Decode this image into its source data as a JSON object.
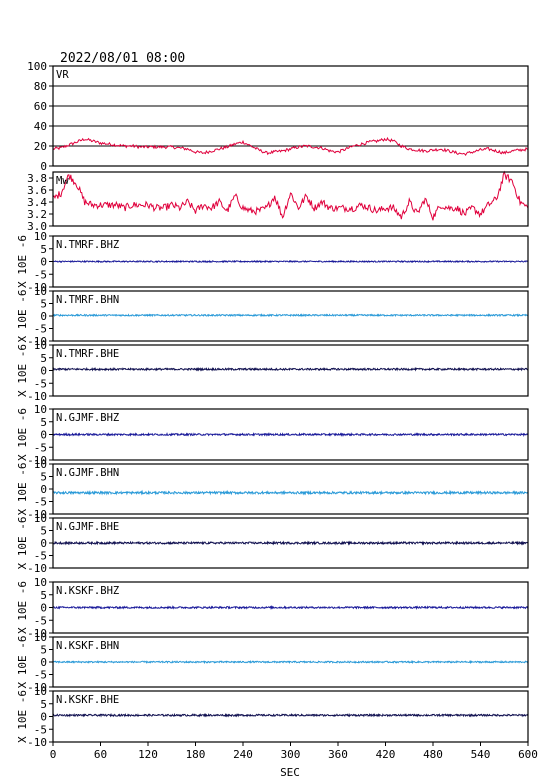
{
  "header": {
    "timestamp": "2022/08/01 08:00"
  },
  "colors": {
    "vr": "#e0003c",
    "mw": "#e0003c",
    "bhz": "#1a1a9a",
    "bhn": "#2a9ad8",
    "bhe": "#101050",
    "frame": "#000000",
    "grid": "#000000"
  },
  "chart_data": {
    "type": "line",
    "xlabel": "SEC",
    "xlim": [
      0,
      600
    ],
    "xticks": [
      0,
      60,
      120,
      180,
      240,
      300,
      360,
      420,
      480,
      540,
      600
    ],
    "panels": [
      {
        "kind": "vr",
        "label": "VR",
        "ylim": [
          0,
          100
        ],
        "yticks": [
          0,
          20,
          40,
          60,
          80,
          100
        ],
        "grid": true,
        "x": [
          0,
          10,
          20,
          30,
          40,
          50,
          60,
          70,
          80,
          90,
          100,
          110,
          120,
          130,
          140,
          150,
          160,
          170,
          180,
          190,
          200,
          210,
          220,
          230,
          240,
          250,
          260,
          270,
          280,
          290,
          300,
          310,
          320,
          330,
          340,
          350,
          360,
          370,
          380,
          390,
          400,
          410,
          420,
          430,
          440,
          450,
          460,
          470,
          480,
          490,
          500,
          510,
          520,
          530,
          540,
          550,
          560,
          570,
          580,
          590,
          600
        ],
        "y": [
          17,
          18,
          21,
          24,
          27,
          25,
          23,
          22,
          21,
          20,
          20,
          19,
          19,
          19,
          19,
          19,
          18,
          17,
          14,
          13,
          15,
          17,
          19,
          22,
          24,
          20,
          16,
          13,
          14,
          15,
          17,
          19,
          20,
          19,
          18,
          15,
          14,
          17,
          20,
          22,
          24,
          25,
          27,
          25,
          20,
          17,
          16,
          15,
          16,
          17,
          15,
          13,
          12,
          14,
          16,
          17,
          15,
          13,
          15,
          16,
          17
        ]
      },
      {
        "kind": "mw",
        "label": "Mw",
        "ylim": [
          3.0,
          3.9
        ],
        "yticks": [
          3.0,
          3.2,
          3.4,
          3.6,
          3.8
        ],
        "grid": false,
        "x": [
          0,
          10,
          20,
          30,
          40,
          50,
          60,
          70,
          80,
          90,
          100,
          110,
          120,
          130,
          140,
          150,
          160,
          170,
          180,
          190,
          200,
          210,
          220,
          230,
          240,
          250,
          260,
          270,
          280,
          290,
          300,
          310,
          320,
          330,
          340,
          350,
          360,
          370,
          380,
          390,
          400,
          410,
          420,
          430,
          440,
          450,
          460,
          470,
          480,
          490,
          500,
          510,
          520,
          530,
          540,
          550,
          560,
          570,
          580,
          590,
          600
        ],
        "y": [
          3.45,
          3.55,
          3.85,
          3.7,
          3.4,
          3.35,
          3.35,
          3.35,
          3.35,
          3.3,
          3.35,
          3.35,
          3.35,
          3.3,
          3.3,
          3.35,
          3.3,
          3.4,
          3.25,
          3.35,
          3.3,
          3.4,
          3.25,
          3.5,
          3.3,
          3.25,
          3.25,
          3.3,
          3.5,
          3.15,
          3.55,
          3.3,
          3.5,
          3.3,
          3.4,
          3.3,
          3.3,
          3.3,
          3.3,
          3.35,
          3.3,
          3.25,
          3.3,
          3.3,
          3.15,
          3.4,
          3.2,
          3.45,
          3.15,
          3.35,
          3.3,
          3.3,
          3.2,
          3.3,
          3.2,
          3.35,
          3.45,
          3.85,
          3.75,
          3.4,
          3.3
        ]
      },
      {
        "kind": "wave",
        "label": "N.TMRF.BHZ",
        "colorKey": "bhz",
        "ylim": [
          -10,
          10
        ],
        "yticks": [
          -10,
          -5,
          0,
          5,
          10
        ],
        "ylabel": "X 10E -6",
        "baseline": 0.0,
        "noise": 0.25
      },
      {
        "kind": "wave",
        "label": "N.TMRF.BHN",
        "colorKey": "bhn",
        "ylim": [
          -10,
          10
        ],
        "yticks": [
          -10,
          -5,
          0,
          5,
          10
        ],
        "ylabel": "X 10E -6",
        "baseline": 0.3,
        "noise": 0.3
      },
      {
        "kind": "wave",
        "label": "N.TMRF.BHE",
        "colorKey": "bhe",
        "ylim": [
          -10,
          10
        ],
        "yticks": [
          -10,
          -5,
          0,
          5,
          10
        ],
        "ylabel": "X 10E -6",
        "baseline": 0.5,
        "noise": 0.35
      },
      {
        "kind": "wave",
        "label": "N.GJMF.BHZ",
        "colorKey": "bhz",
        "ylim": [
          -10,
          10
        ],
        "yticks": [
          -10,
          -5,
          0,
          5,
          10
        ],
        "ylabel": "X 10E -6",
        "baseline": 0.0,
        "noise": 0.35
      },
      {
        "kind": "wave",
        "label": "N.GJMF.BHN",
        "colorKey": "bhn",
        "ylim": [
          -10,
          10
        ],
        "yticks": [
          -10,
          -5,
          0,
          5,
          10
        ],
        "ylabel": "X 10E -6",
        "baseline": -1.5,
        "noise": 0.45
      },
      {
        "kind": "wave",
        "label": "N.GJMF.BHE",
        "colorKey": "bhe",
        "ylim": [
          -10,
          10
        ],
        "yticks": [
          -10,
          -5,
          0,
          5,
          10
        ],
        "ylabel": "X 10E -6",
        "baseline": 0.0,
        "noise": 0.4
      },
      {
        "kind": "wave",
        "label": "N.KSKF.BHZ",
        "colorKey": "bhz",
        "ylim": [
          -10,
          10
        ],
        "yticks": [
          -10,
          -5,
          0,
          5,
          10
        ],
        "ylabel": "X 10E -6",
        "baseline": 0.0,
        "noise": 0.35
      },
      {
        "kind": "wave",
        "label": "N.KSKF.BHN",
        "colorKey": "bhn",
        "ylim": [
          -10,
          10
        ],
        "yticks": [
          -10,
          -5,
          0,
          5,
          10
        ],
        "ylabel": "X 10E -6",
        "baseline": 0.0,
        "noise": 0.3
      },
      {
        "kind": "wave",
        "label": "N.KSKF.BHE",
        "colorKey": "bhe",
        "ylim": [
          -10,
          10
        ],
        "yticks": [
          -10,
          -5,
          0,
          5,
          10
        ],
        "ylabel": "X 10E -6",
        "baseline": 0.5,
        "noise": 0.35
      }
    ]
  }
}
